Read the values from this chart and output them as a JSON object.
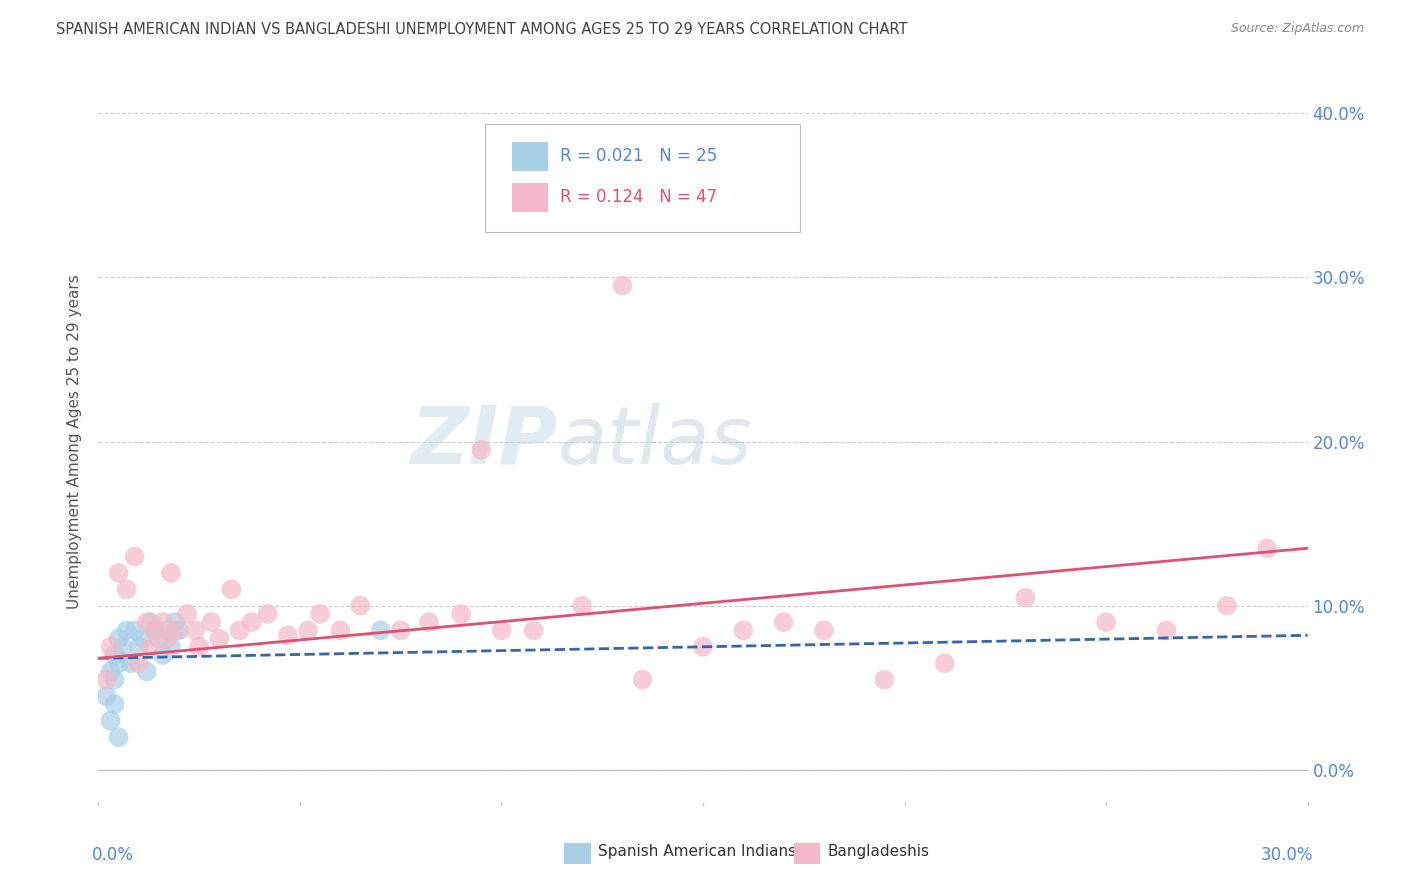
{
  "title": "SPANISH AMERICAN INDIAN VS BANGLADESHI UNEMPLOYMENT AMONG AGES 25 TO 29 YEARS CORRELATION CHART",
  "source": "Source: ZipAtlas.com",
  "ylabel": "Unemployment Among Ages 25 to 29 years",
  "legend1_r": "0.021",
  "legend1_n": "25",
  "legend2_r": "0.124",
  "legend2_n": "47",
  "blue_color": "#a8cfe8",
  "pink_color": "#f4b8c8",
  "blue_line_color": "#3366aa",
  "pink_line_color": "#e05070",
  "title_color": "#444444",
  "tick_color": "#5588cc",
  "grid_color": "#cccccc",
  "watermark_color": "#d8e8f0",
  "xlim": [
    0.0,
    0.3
  ],
  "ylim": [
    -0.02,
    0.42
  ],
  "yticks": [
    0.0,
    0.1,
    0.2,
    0.3,
    0.4
  ],
  "ytick_labels": [
    "0.0%",
    "10.0%",
    "20.0%",
    "30.0%",
    "40.0%"
  ],
  "blue_x": [
    0.002,
    0.003,
    0.003,
    0.004,
    0.004,
    0.004,
    0.005,
    0.005,
    0.005,
    0.006,
    0.007,
    0.008,
    0.009,
    0.01,
    0.011,
    0.012,
    0.013,
    0.014,
    0.015,
    0.016,
    0.017,
    0.018,
    0.019,
    0.02,
    0.07
  ],
  "blue_y": [
    0.045,
    0.03,
    0.06,
    0.07,
    0.055,
    0.04,
    0.08,
    0.065,
    0.02,
    0.075,
    0.085,
    0.065,
    0.085,
    0.075,
    0.08,
    0.06,
    0.09,
    0.085,
    0.08,
    0.07,
    0.085,
    0.075,
    0.09,
    0.085,
    0.085
  ],
  "pink_x": [
    0.002,
    0.003,
    0.005,
    0.007,
    0.009,
    0.01,
    0.012,
    0.013,
    0.014,
    0.016,
    0.017,
    0.018,
    0.019,
    0.022,
    0.024,
    0.025,
    0.028,
    0.03,
    0.033,
    0.035,
    0.038,
    0.042,
    0.047,
    0.052,
    0.055,
    0.06,
    0.065,
    0.075,
    0.082,
    0.09,
    0.095,
    0.1,
    0.108,
    0.12,
    0.135,
    0.15,
    0.16,
    0.17,
    0.18,
    0.195,
    0.21,
    0.23,
    0.25,
    0.265,
    0.28,
    0.29,
    0.13
  ],
  "pink_y": [
    0.055,
    0.075,
    0.12,
    0.11,
    0.13,
    0.065,
    0.09,
    0.075,
    0.085,
    0.09,
    0.08,
    0.12,
    0.085,
    0.095,
    0.085,
    0.075,
    0.09,
    0.08,
    0.11,
    0.085,
    0.09,
    0.095,
    0.082,
    0.085,
    0.095,
    0.085,
    0.1,
    0.085,
    0.09,
    0.095,
    0.195,
    0.085,
    0.085,
    0.1,
    0.055,
    0.075,
    0.085,
    0.09,
    0.085,
    0.055,
    0.065,
    0.105,
    0.09,
    0.085,
    0.1,
    0.135,
    0.295
  ],
  "blue_trend_x": [
    0.0,
    0.3
  ],
  "blue_trend_y_start": 0.068,
  "blue_trend_y_end": 0.082,
  "pink_trend_y_start": 0.068,
  "pink_trend_y_end": 0.135
}
